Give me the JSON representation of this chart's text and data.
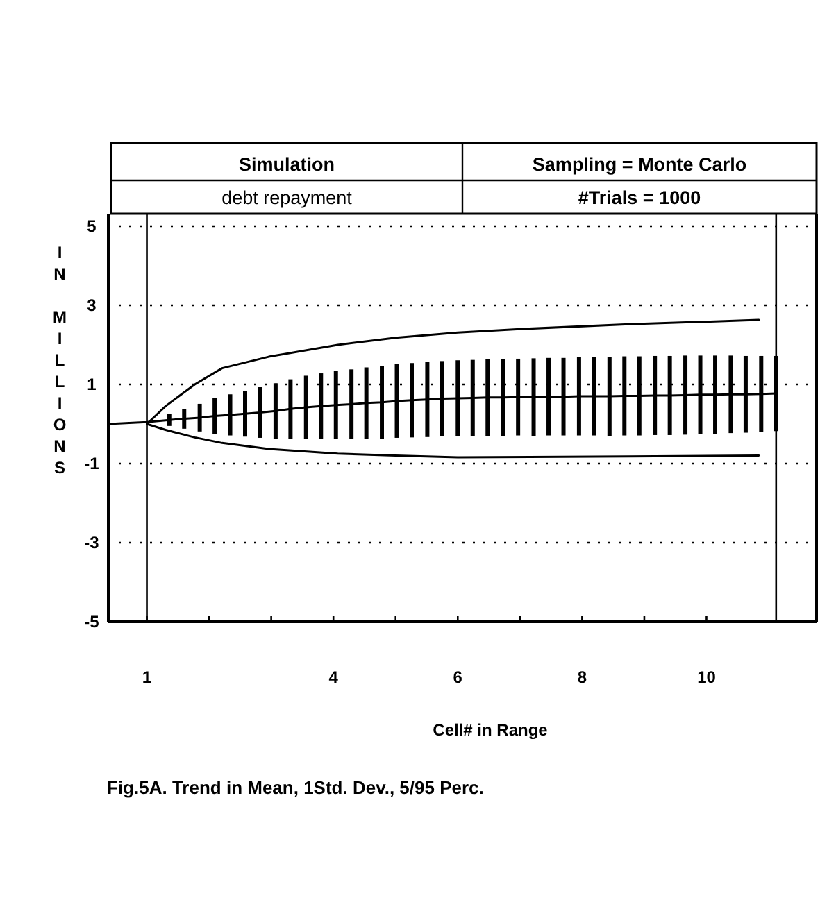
{
  "chart_data": {
    "type": "line",
    "title": "Simulation",
    "subtitle": "debt repayment",
    "annotations": [
      "Sampling = Monte Carlo",
      "#Trials = 1000",
      "Fig.5A. Trend in Mean, 1Std. Dev., 5/95 Perc."
    ],
    "xlabel": "Cell# in Range",
    "ylabel": "IN MILLIONS",
    "xlim": [
      0.38,
      11.77
    ],
    "ylim": [
      -5,
      5
    ],
    "xticks": [
      1,
      {
        "value": 2,
        "label": null
      },
      {
        "value": 3,
        "label": null
      },
      4,
      {
        "value": 5,
        "label": null
      },
      6,
      {
        "value": 7,
        "label": null
      },
      8,
      {
        "value": 9,
        "label": null
      },
      10
    ],
    "yticks": [
      5,
      3,
      1,
      -1,
      -3,
      -5
    ],
    "grid": "y",
    "marker": "none",
    "line_style": "solid",
    "ref_lines": [
      {
        "axis": "x",
        "value": 1,
        "color": "#000000"
      },
      {
        "axis": "x",
        "value": 11.12,
        "color": "#000000"
      }
    ],
    "series": [
      {
        "color": "#000000",
        "x": [
          1,
          1.3,
          1.77,
          2.21,
          2.96,
          4.07,
          5,
          6,
          7,
          8.75,
          10.84
        ],
        "values": [
          0,
          0.45,
          1.0,
          1.41,
          1.7,
          2.0,
          2.18,
          2.31,
          2.4,
          2.52,
          2.63
        ]
      },
      {
        "color": "#000000",
        "x": [
          0.38,
          1,
          1.36,
          1.6,
          1.85,
          2.09,
          2.34,
          2.58,
          2.82,
          3.07,
          3.31,
          3.56,
          3.8,
          4.04,
          4.29,
          4.53,
          4.78,
          5.02,
          5.26,
          5.51,
          5.75,
          6.0,
          6.24,
          6.48,
          6.73,
          6.97,
          7.22,
          7.46,
          7.7,
          7.95,
          8.19,
          8.44,
          8.68,
          8.92,
          9.17,
          9.41,
          9.66,
          9.9,
          10.14,
          10.39,
          10.63,
          10.88,
          11.12
        ],
        "values": [
          0,
          0.05,
          0.1,
          0.13,
          0.16,
          0.2,
          0.23,
          0.26,
          0.29,
          0.33,
          0.38,
          0.42,
          0.45,
          0.48,
          0.5,
          0.53,
          0.55,
          0.58,
          0.6,
          0.62,
          0.64,
          0.65,
          0.66,
          0.67,
          0.67,
          0.68,
          0.68,
          0.69,
          0.69,
          0.7,
          0.7,
          0.7,
          0.71,
          0.71,
          0.72,
          0.72,
          0.73,
          0.74,
          0.74,
          0.75,
          0.75,
          0.76,
          0.77
        ],
        "errors": [
          null,
          null,
          0.15,
          0.25,
          0.35,
          0.45,
          0.52,
          0.58,
          0.64,
          0.7,
          0.75,
          0.8,
          0.83,
          0.86,
          0.88,
          0.9,
          0.92,
          0.93,
          0.94,
          0.95,
          0.95,
          0.96,
          0.96,
          0.97,
          0.97,
          0.97,
          0.98,
          0.98,
          0.98,
          0.99,
          0.99,
          1.0,
          1.0,
          1.0,
          1.0,
          1.0,
          1.0,
          0.99,
          0.99,
          0.98,
          0.97,
          0.96,
          0.95
        ]
      },
      {
        "color": "#000000",
        "x": [
          1,
          1.3,
          1.77,
          2.21,
          2.96,
          4.07,
          5,
          6,
          8.75,
          10.84
        ],
        "values": [
          0,
          -0.15,
          -0.34,
          -0.48,
          -0.63,
          -0.75,
          -0.8,
          -0.84,
          -0.82,
          -0.8
        ]
      }
    ]
  }
}
